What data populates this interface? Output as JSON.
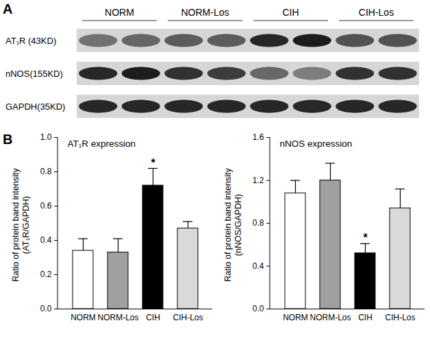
{
  "panel_labels": [
    "A",
    "B"
  ],
  "blot": {
    "groups": [
      "NORM",
      "NORM-Los",
      "CIH",
      "CIH-Los"
    ],
    "rows": [
      {
        "label": "AT₁R (43KD)",
        "band_intensity": [
          0.55,
          0.6,
          0.65,
          0.65,
          0.9,
          0.95,
          0.7,
          0.7
        ]
      },
      {
        "label": "nNOS(155KD)",
        "band_intensity": [
          0.9,
          0.95,
          0.85,
          0.8,
          0.6,
          0.5,
          0.85,
          0.85
        ]
      },
      {
        "label": "GAPDH(35KD)",
        "band_intensity": [
          0.9,
          0.9,
          0.9,
          0.9,
          0.9,
          0.9,
          0.9,
          0.9
        ]
      }
    ]
  },
  "chart_data": [
    {
      "type": "bar",
      "title": "AT₁R expression",
      "ylabel": [
        "Ratio of protein band intensity",
        "(AT₁R/GAPDH)"
      ],
      "categories": [
        "NORM",
        "NORM-Los",
        "CIH",
        "CIH-Los"
      ],
      "values": [
        0.34,
        0.33,
        0.72,
        0.47
      ],
      "errors": [
        0.07,
        0.08,
        0.1,
        0.04
      ],
      "colors": [
        "#ffffff",
        "#a0a0a0",
        "#000000",
        "#d9d9d9"
      ],
      "ylim": [
        0,
        1.0
      ],
      "yticks": [
        {
          "value": 0,
          "label": "0.0"
        },
        {
          "value": 0.2,
          "label": "0.2"
        },
        {
          "value": 0.4,
          "label": "0.4"
        },
        {
          "value": 0.6,
          "label": "0.6"
        },
        {
          "value": 0.8,
          "label": "0.8"
        },
        {
          "value": 1.0,
          "label": "1.0"
        }
      ],
      "annotations": [
        {
          "category": "CIH",
          "text": "*"
        }
      ]
    },
    {
      "type": "bar",
      "title": "nNOS expression",
      "ylabel": [
        "Ratio of protein band intensity",
        "(nNOS/GAPDH)"
      ],
      "categories": [
        "NORM",
        "NORM-Los",
        "CIH",
        "CIH-Los"
      ],
      "values": [
        1.08,
        1.2,
        0.52,
        0.94
      ],
      "errors": [
        0.12,
        0.16,
        0.09,
        0.18
      ],
      "colors": [
        "#ffffff",
        "#a0a0a0",
        "#000000",
        "#d9d9d9"
      ],
      "ylim": [
        0,
        1.6
      ],
      "yticks": [
        {
          "value": 0,
          "label": "0.0"
        },
        {
          "value": 0.4,
          "label": "0.4"
        },
        {
          "value": 0.8,
          "label": "0.8"
        },
        {
          "value": 1.2,
          "label": "1.2"
        },
        {
          "value": 1.6,
          "label": "1.6"
        }
      ],
      "annotations": [
        {
          "category": "CIH",
          "text": "*"
        }
      ]
    }
  ]
}
